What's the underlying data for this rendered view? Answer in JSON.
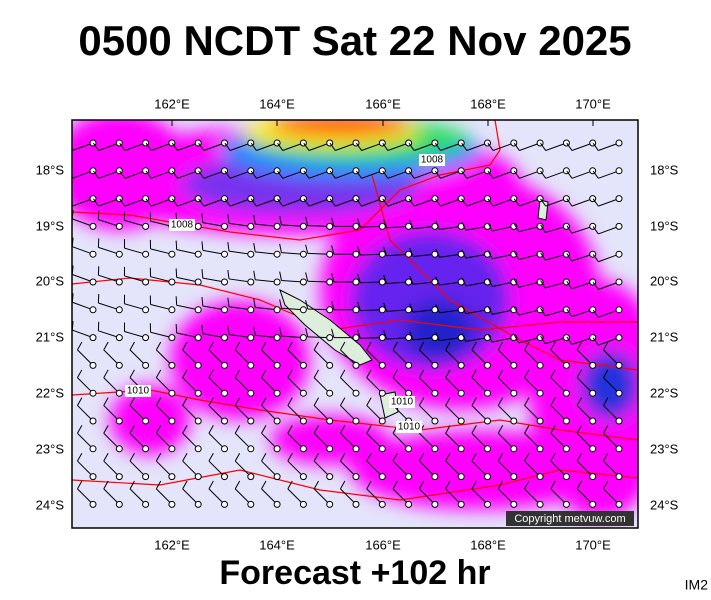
{
  "header": {
    "title": "0500 NCDT Sat 22 Nov 2025"
  },
  "map": {
    "lon_labels": [
      "162°E",
      "164°E",
      "166°E",
      "168°E",
      "170°E"
    ],
    "lat_labels": [
      "18°S",
      "19°S",
      "20°S",
      "21°S",
      "22°S",
      "23°S",
      "24°S"
    ],
    "isobar_labels": [
      "1008",
      "1008",
      "1010",
      "1010",
      "1010"
    ],
    "copyright": "Copyright metvuw.com"
  },
  "footer": {
    "forecast": "Forecast +102 hr",
    "image_id": "IM2"
  }
}
